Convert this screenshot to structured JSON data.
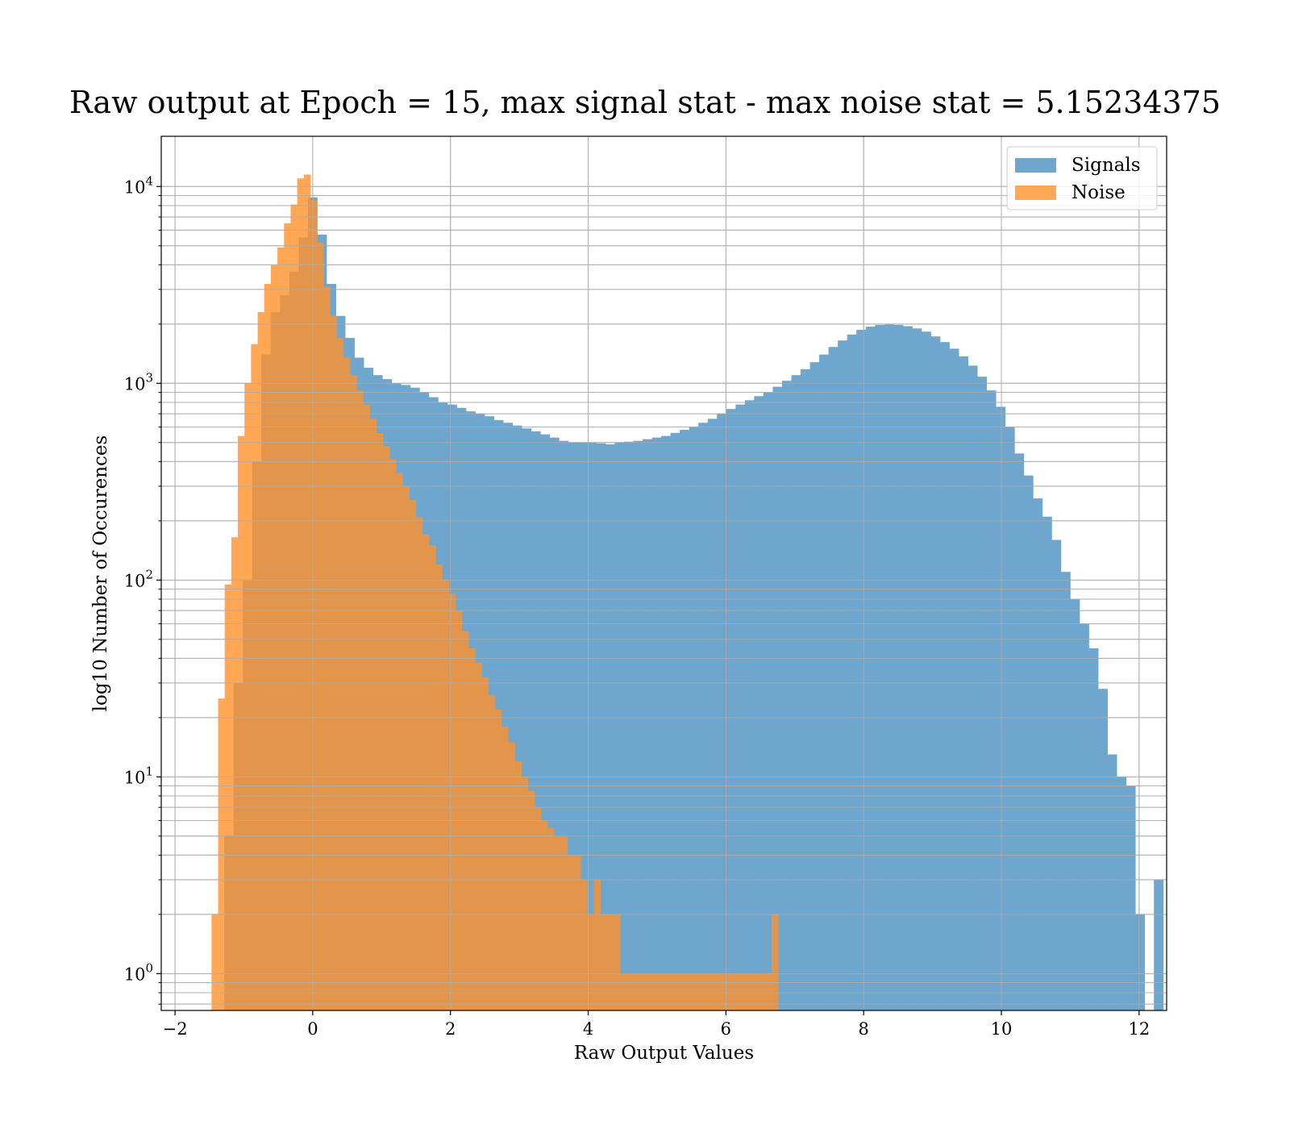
{
  "chart_data": {
    "type": "bar",
    "subtype": "histogram",
    "title": "Raw output at Epoch = 15, max signal stat - max noise stat = 5.15234375",
    "xlabel": "Raw Output Values",
    "ylabel": "log10 Number of Occurences",
    "xlim": [
      -2.2,
      12.4
    ],
    "ylim": [
      0.65,
      18000
    ],
    "yscale": "log",
    "grid": true,
    "legend_position": "top-right",
    "xticks": [
      -2,
      0,
      2,
      4,
      6,
      8,
      10,
      12
    ],
    "xtick_labels": [
      "−2",
      "0",
      "2",
      "4",
      "6",
      "8",
      "10",
      "12"
    ],
    "yticks": [
      {
        "value": 1,
        "base": "10",
        "exp": "0"
      },
      {
        "value": 10,
        "base": "10",
        "exp": "1"
      },
      {
        "value": 100,
        "base": "10",
        "exp": "2"
      },
      {
        "value": 1000,
        "base": "10",
        "exp": "3"
      },
      {
        "value": 10000,
        "base": "10",
        "exp": "4"
      }
    ],
    "series": [
      {
        "name": "Signals",
        "color": "#4a90c2",
        "bin_start": -1.42,
        "bin_width": 0.135,
        "values": [
          0,
          5,
          30,
          100,
          400,
          1400,
          2300,
          2800,
          3700,
          5500,
          8800,
          5700,
          3200,
          2200,
          1700,
          1350,
          1200,
          1100,
          1050,
          1000,
          980,
          950,
          900,
          850,
          800,
          780,
          750,
          720,
          700,
          680,
          650,
          630,
          610,
          590,
          570,
          550,
          530,
          510,
          500,
          500,
          500,
          495,
          490,
          500,
          505,
          510,
          520,
          530,
          540,
          560,
          580,
          600,
          630,
          660,
          700,
          740,
          780,
          820,
          860,
          900,
          960,
          1030,
          1100,
          1180,
          1280,
          1400,
          1530,
          1650,
          1770,
          1870,
          1940,
          1980,
          1990,
          1980,
          1950,
          1900,
          1830,
          1730,
          1620,
          1500,
          1370,
          1230,
          1080,
          920,
          760,
          600,
          440,
          340,
          260,
          210,
          160,
          110,
          80,
          60,
          45,
          28,
          13,
          10,
          9,
          2,
          0,
          3
        ]
      },
      {
        "name": "Noise",
        "color": "#ff922b",
        "bin_start": -1.47,
        "bin_width": 0.0957,
        "values": [
          2,
          25,
          95,
          165,
          540,
          1000,
          1580,
          2300,
          3200,
          4000,
          4900,
          6500,
          8100,
          11000,
          11500,
          8500,
          5200,
          3100,
          2200,
          1700,
          1350,
          1100,
          920,
          780,
          660,
          560,
          480,
          410,
          350,
          300,
          255,
          210,
          170,
          150,
          120,
          100,
          85,
          70,
          55,
          45,
          38,
          32,
          26,
          22,
          18,
          15,
          12,
          10,
          8.5,
          7,
          6,
          5.5,
          5,
          5,
          4,
          4,
          3,
          2,
          3,
          2,
          2,
          2,
          1,
          1,
          1,
          1,
          1,
          1,
          1,
          1,
          1,
          1,
          1,
          1,
          1,
          1,
          1,
          1,
          1,
          1,
          1,
          1,
          1,
          1,
          1,
          2
        ]
      }
    ]
  }
}
